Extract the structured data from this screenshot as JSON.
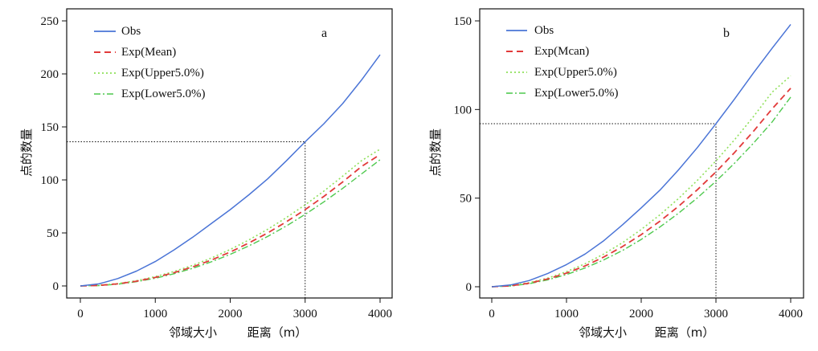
{
  "chart_data": [
    {
      "type": "line",
      "panel_label": "a",
      "xlabel_left": "邻域大小",
      "xlabel_right": "距离（m）",
      "ylabel": "点的数量",
      "xlim": [
        0,
        4000
      ],
      "ylim": [
        0,
        250
      ],
      "x_ticks": [
        "0",
        "1000",
        "2000",
        "3000",
        "4000"
      ],
      "y_ticks": [
        "0",
        "50",
        "100",
        "150",
        "200",
        "250"
      ],
      "grid": false,
      "legend_position": "top-left",
      "reference": {
        "x": 3000,
        "y": 136
      },
      "x": [
        0,
        250,
        500,
        750,
        1000,
        1250,
        1500,
        1750,
        2000,
        2250,
        2500,
        2750,
        3000,
        3250,
        3500,
        3750,
        4000
      ],
      "series": [
        {
          "name": "Obs",
          "color": "#4a74d6",
          "dash": "solid",
          "values": [
            0,
            2,
            7,
            14,
            23,
            34,
            46,
            59,
            72,
            86,
            101,
            118,
            136,
            153,
            172,
            194,
            218
          ]
        },
        {
          "name": "Exp(Mean)",
          "color": "#e23a3a",
          "dash": "dashed",
          "values": [
            0,
            0.5,
            2,
            4.5,
            8,
            12.5,
            18,
            24.5,
            32,
            40.5,
            50,
            60.5,
            72,
            84.5,
            98,
            112.5,
            124
          ]
        },
        {
          "name": "Exp(Upper5.0%)",
          "color": "#8fe05a",
          "dash": "dotted",
          "values": [
            0,
            0.6,
            2.3,
            5,
            8.8,
            13.6,
            19.5,
            26.4,
            34.4,
            43.4,
            53.4,
            64.5,
            76.5,
            89.5,
            103.5,
            118,
            129
          ]
        },
        {
          "name": "Exp(Lower5.0%)",
          "color": "#4ec94e",
          "dash": "dashdot",
          "values": [
            0,
            0.4,
            1.7,
            4,
            7.3,
            11.5,
            16.7,
            22.8,
            29.8,
            37.8,
            46.7,
            56.6,
            67.5,
            79.3,
            92,
            105.5,
            119
          ]
        }
      ]
    },
    {
      "type": "line",
      "panel_label": "b",
      "xlabel_left": "邻域大小",
      "xlabel_right": "距离（m）",
      "ylabel": "点的数量",
      "xlim": [
        0,
        4000
      ],
      "ylim": [
        0,
        150
      ],
      "x_ticks": [
        "0",
        "1000",
        "2000",
        "3000",
        "4000"
      ],
      "y_ticks": [
        "0",
        "50",
        "100",
        "150"
      ],
      "grid": false,
      "legend_position": "top-left",
      "reference": {
        "x": 3000,
        "y": 92
      },
      "x": [
        0,
        250,
        500,
        750,
        1000,
        1250,
        1500,
        1750,
        2000,
        2250,
        2500,
        2750,
        3000,
        3250,
        3500,
        3750,
        4000
      ],
      "series": [
        {
          "name": "Obs",
          "color": "#4a74d6",
          "dash": "solid",
          "values": [
            0,
            1,
            3.5,
            7.5,
            12.5,
            18.5,
            26,
            35,
            44.5,
            54.5,
            66,
            78.5,
            92,
            106,
            120.5,
            134.5,
            148
          ]
        },
        {
          "name": "Exp(Mcan)",
          "color": "#e23a3a",
          "dash": "dashed",
          "values": [
            0,
            0.5,
            2,
            4.4,
            7.7,
            11.8,
            16.8,
            22.7,
            29.4,
            37,
            45.4,
            54.7,
            64.8,
            75.8,
            87.6,
            100.3,
            112
          ]
        },
        {
          "name": "Exp(Upper5.0%)",
          "color": "#8fe05a",
          "dash": "dotted",
          "values": [
            0,
            0.6,
            2.3,
            4.9,
            8.5,
            13,
            18.5,
            24.9,
            32.3,
            40.6,
            49.8,
            60,
            71,
            83,
            95.9,
            109.7,
            119
          ]
        },
        {
          "name": "Exp(Lower5.0%)",
          "color": "#4ec94e",
          "dash": "dashdot",
          "values": [
            0,
            0.4,
            1.7,
            3.9,
            6.9,
            10.6,
            15.2,
            20.5,
            26.7,
            33.7,
            41.5,
            50.1,
            59.5,
            69.8,
            80.9,
            92.9,
            107
          ]
        }
      ]
    }
  ]
}
